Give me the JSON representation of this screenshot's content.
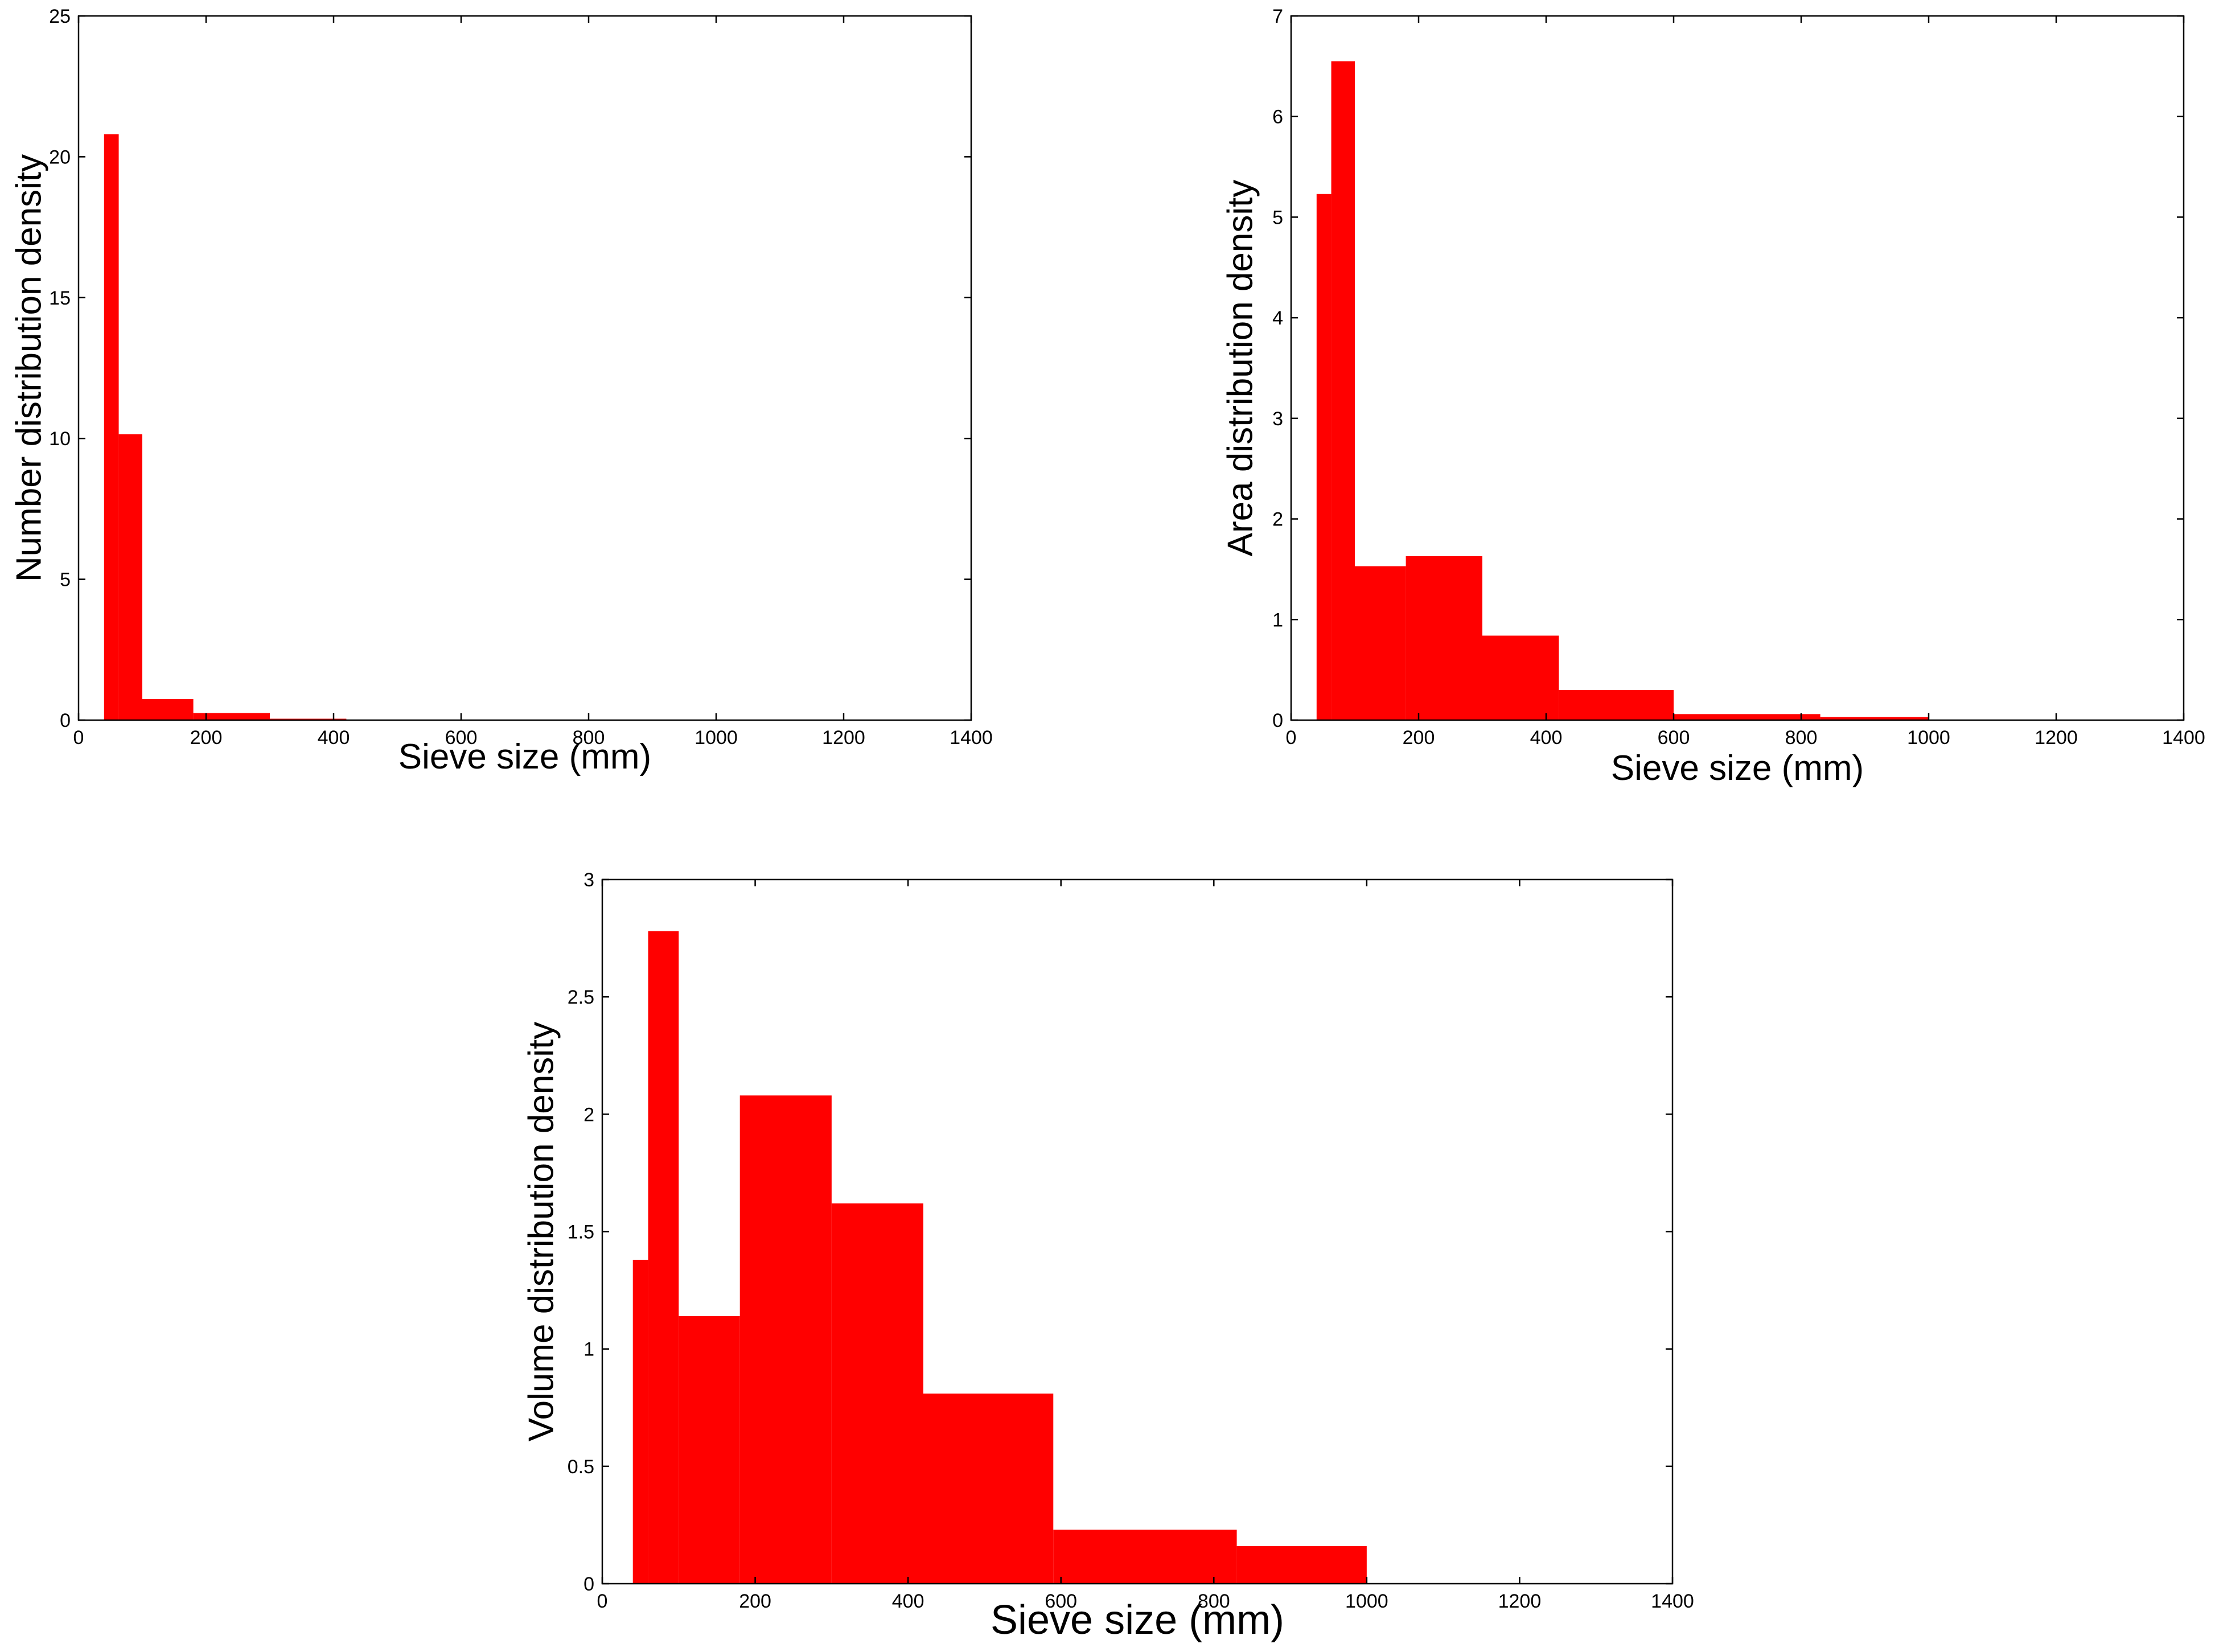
{
  "bar_color": "#ff0000",
  "chart_data": [
    {
      "type": "bar",
      "title": "",
      "xlabel": "Sieve size (mm)",
      "ylabel": "Number distribution density",
      "xlim": [
        0,
        1400
      ],
      "ylim": [
        0,
        25
      ],
      "xticks": [
        0,
        200,
        400,
        600,
        800,
        1000,
        1200,
        1400
      ],
      "yticks": [
        0,
        5,
        10,
        15,
        20,
        25
      ],
      "grid": false,
      "bins": [
        {
          "x0": 40,
          "x1": 63,
          "value": 20.8
        },
        {
          "x0": 63,
          "x1": 100,
          "value": 10.15
        },
        {
          "x0": 100,
          "x1": 180,
          "value": 0.75
        },
        {
          "x0": 180,
          "x1": 300,
          "value": 0.25
        },
        {
          "x0": 300,
          "x1": 420,
          "value": 0.05
        },
        {
          "x0": 420,
          "x1": 600,
          "value": 0.01
        }
      ]
    },
    {
      "type": "bar",
      "title": "",
      "xlabel": "Sieve size (mm)",
      "ylabel": "Area distribution density",
      "xlim": [
        0,
        1400
      ],
      "ylim": [
        0,
        7
      ],
      "xticks": [
        0,
        200,
        400,
        600,
        800,
        1000,
        1200,
        1400
      ],
      "yticks": [
        0,
        1,
        2,
        3,
        4,
        5,
        6,
        7
      ],
      "grid": false,
      "bins": [
        {
          "x0": 40,
          "x1": 63,
          "value": 5.23
        },
        {
          "x0": 63,
          "x1": 100,
          "value": 6.55
        },
        {
          "x0": 100,
          "x1": 180,
          "value": 1.53
        },
        {
          "x0": 180,
          "x1": 300,
          "value": 1.63
        },
        {
          "x0": 300,
          "x1": 420,
          "value": 0.84
        },
        {
          "x0": 420,
          "x1": 600,
          "value": 0.3
        },
        {
          "x0": 600,
          "x1": 830,
          "value": 0.06
        },
        {
          "x0": 830,
          "x1": 1000,
          "value": 0.03
        }
      ]
    },
    {
      "type": "bar",
      "title": "",
      "xlabel": "Sieve size (mm)",
      "ylabel": "Volume distribution density",
      "xlim": [
        0,
        1400
      ],
      "ylim": [
        0,
        3
      ],
      "xticks": [
        0,
        200,
        400,
        600,
        800,
        1000,
        1200,
        1400
      ],
      "yticks": [
        0,
        0.5,
        1,
        1.5,
        2,
        2.5,
        3
      ],
      "grid": false,
      "bins": [
        {
          "x0": 40,
          "x1": 60,
          "value": 1.38
        },
        {
          "x0": 60,
          "x1": 100,
          "value": 2.78
        },
        {
          "x0": 100,
          "x1": 180,
          "value": 1.14
        },
        {
          "x0": 180,
          "x1": 300,
          "value": 2.08
        },
        {
          "x0": 300,
          "x1": 420,
          "value": 1.62
        },
        {
          "x0": 420,
          "x1": 590,
          "value": 0.81
        },
        {
          "x0": 590,
          "x1": 830,
          "value": 0.23
        },
        {
          "x0": 830,
          "x1": 1000,
          "value": 0.16
        }
      ]
    }
  ]
}
